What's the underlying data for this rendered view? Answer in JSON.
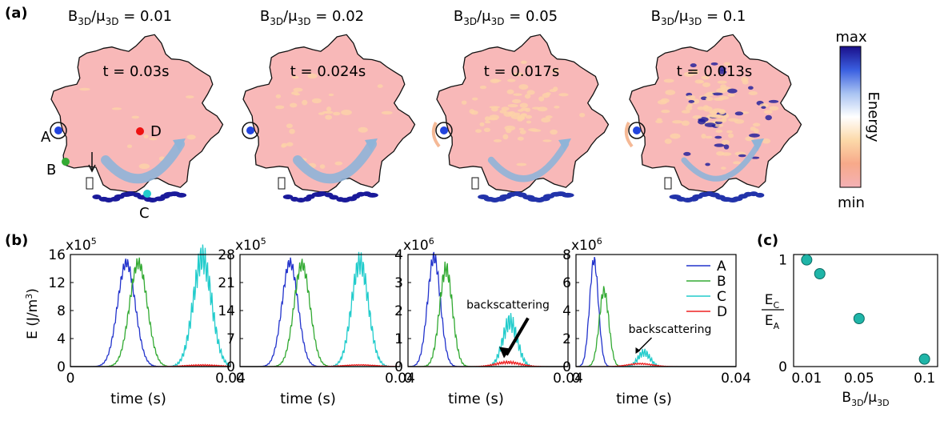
{
  "panel_a": {
    "label": "(a)",
    "panels": [
      {
        "title_ratio": "B",
        "title_value": "0.01",
        "time_label": "t = 0.03s",
        "backflow": false
      },
      {
        "title_ratio": "B",
        "title_value": "0.02",
        "time_label": "t = 0.024s",
        "backflow": false
      },
      {
        "title_ratio": "B",
        "title_value": "0.05",
        "time_label": "t = 0.017s",
        "backflow": true
      },
      {
        "title_ratio": "B",
        "title_value": "0.1",
        "time_label": "t = 0.013s",
        "backflow": true
      }
    ],
    "title_parts": {
      "b": "B",
      "b_sub": "3D",
      "slash": "/μ",
      "mu_sub": "3D",
      "eq": " = "
    },
    "points": {
      "A": "A",
      "B": "B",
      "C": "C",
      "D": "D"
    },
    "colors": {
      "A": "#2244dd",
      "B": "#33aa33",
      "C": "#22cccc",
      "D": "#ee1111",
      "flow": "#8fb4d8",
      "backflow": "#f5b996"
    },
    "colorbar": {
      "max_label": "max",
      "min_label": "min",
      "title": "Energy",
      "stops": [
        "#1a0f8a",
        "#3a5fe0",
        "#a9c3f2",
        "#ffffff",
        "#fcd9a8",
        "#f7a98a",
        "#f4b1b5"
      ]
    }
  },
  "panel_b": {
    "label": "(b)",
    "ylabel": "E (J/m",
    "ylabel_sup": "3",
    "ylabel_end": ")",
    "xlabel": "time (s)",
    "backscatter_label": "backscattering",
    "legend": [
      "A",
      "B",
      "C",
      "D"
    ],
    "series_colors": {
      "A": "#2233cc",
      "B": "#33aa33",
      "C": "#22cccc",
      "D": "#ee2222"
    }
  },
  "panel_c": {
    "label": "(c)",
    "ylabel_num": "E",
    "ylabel_num_sub": "C",
    "ylabel_den": "E",
    "ylabel_den_sub": "A",
    "xlabel": "B",
    "xlabel_sub1": "3D",
    "xlabel_mid": "/μ",
    "xlabel_sub2": "3D"
  },
  "chart_data": [
    {
      "type": "line",
      "id": "b1",
      "title": "B3D/μ3D = 0.01",
      "multiplier": "x10",
      "multiplier_exp": "5",
      "xlim": [
        0,
        0.04
      ],
      "ylim": [
        0,
        16
      ],
      "xticks": [
        0,
        0.04
      ],
      "xtick_labels": [
        "0",
        "0.04"
      ],
      "yticks": [
        0,
        4,
        8,
        12,
        16
      ],
      "ytick_labels": [
        "0",
        "4",
        "8",
        "12",
        "16"
      ],
      "series": [
        {
          "name": "A",
          "peak_x": 0.014,
          "peak_y": 14.8,
          "width": 0.0022,
          "osc": 0.8
        },
        {
          "name": "B",
          "peak_x": 0.017,
          "peak_y": 14.8,
          "width": 0.0022,
          "osc": 0.9
        },
        {
          "name": "C",
          "peak_x": 0.033,
          "peak_y": 15.5,
          "width": 0.0023,
          "osc": 2.2
        },
        {
          "name": "D",
          "peak_x": 0.033,
          "peak_y": 0.2,
          "width": 0.004,
          "osc": 0.1
        }
      ]
    },
    {
      "type": "line",
      "id": "b2",
      "title": "B3D/μ3D = 0.02",
      "multiplier": "x10",
      "multiplier_exp": "5",
      "xlim": [
        0,
        0.04
      ],
      "ylim": [
        0,
        28
      ],
      "xticks": [
        0,
        0.04
      ],
      "xtick_labels": [
        "0",
        "0.04"
      ],
      "yticks": [
        0,
        7,
        14,
        21,
        28
      ],
      "ytick_labels": [
        "0",
        "7",
        "14",
        "21",
        "28"
      ],
      "series": [
        {
          "name": "A",
          "peak_x": 0.0125,
          "peak_y": 26.0,
          "width": 0.002,
          "osc": 1.4
        },
        {
          "name": "B",
          "peak_x": 0.0155,
          "peak_y": 25.5,
          "width": 0.002,
          "osc": 1.6
        },
        {
          "name": "C",
          "peak_x": 0.03,
          "peak_y": 26.0,
          "width": 0.0021,
          "osc": 3.0
        },
        {
          "name": "D",
          "peak_x": 0.03,
          "peak_y": 0.4,
          "width": 0.004,
          "osc": 0.1
        }
      ]
    },
    {
      "type": "line",
      "id": "b3",
      "title": "B3D/μ3D = 0.05",
      "multiplier": "x10",
      "multiplier_exp": "6",
      "xlim": [
        0,
        0.04
      ],
      "ylim": [
        0,
        4
      ],
      "xticks": [
        0,
        0.04
      ],
      "xtick_labels": [
        "0",
        "0.04"
      ],
      "yticks": [
        0,
        1,
        2,
        3,
        4
      ],
      "ytick_labels": [
        "0",
        "1",
        "2",
        "3",
        "4"
      ],
      "series": [
        {
          "name": "A",
          "peak_x": 0.0065,
          "peak_y": 3.9,
          "width": 0.0016,
          "osc": 0.25
        },
        {
          "name": "B",
          "peak_x": 0.0095,
          "peak_y": 3.5,
          "width": 0.0016,
          "osc": 0.3
        },
        {
          "name": "C",
          "peak_x": 0.0255,
          "peak_y": 1.6,
          "width": 0.0018,
          "osc": 0.35
        },
        {
          "name": "D",
          "peak_x": 0.025,
          "peak_y": 0.15,
          "width": 0.003,
          "osc": 0.05
        }
      ],
      "annotation": {
        "text": "backscattering",
        "x": 0.024,
        "y": 0.3
      }
    },
    {
      "type": "line",
      "id": "b4",
      "title": "B3D/μ3D = 0.1",
      "multiplier": "x10",
      "multiplier_exp": "6",
      "xlim": [
        0,
        0.04
      ],
      "ylim": [
        0,
        8
      ],
      "xticks": [
        0,
        0.04
      ],
      "xtick_labels": [
        "0",
        "0.04"
      ],
      "yticks": [
        0,
        2,
        4,
        6,
        8
      ],
      "ytick_labels": [
        "0",
        "2",
        "4",
        "6",
        "8"
      ],
      "series": [
        {
          "name": "A",
          "peak_x": 0.0045,
          "peak_y": 7.6,
          "width": 0.0011,
          "osc": 0.4
        },
        {
          "name": "B",
          "peak_x": 0.007,
          "peak_y": 5.4,
          "width": 0.0012,
          "osc": 0.4
        },
        {
          "name": "C",
          "peak_x": 0.017,
          "peak_y": 1.0,
          "width": 0.0015,
          "osc": 0.3
        },
        {
          "name": "D",
          "peak_x": 0.016,
          "peak_y": 0.2,
          "width": 0.003,
          "osc": 0.05
        }
      ],
      "annotation": {
        "text": "backscattering",
        "x": 0.0145,
        "y": 0.8
      }
    },
    {
      "type": "scatter",
      "id": "c",
      "x_categories": [
        "0.01",
        "0.05",
        "0.1"
      ],
      "x_positions": [
        0.01,
        0.05,
        0.1
      ],
      "xlim": [
        0,
        0.11
      ],
      "ylim": [
        0,
        1.05
      ],
      "yticks": [
        0,
        1
      ],
      "ytick_labels": [
        "0",
        "1"
      ],
      "points": [
        {
          "x": 0.01,
          "y": 1.0
        },
        {
          "x": 0.02,
          "y": 0.87
        },
        {
          "x": 0.05,
          "y": 0.45
        },
        {
          "x": 0.1,
          "y": 0.07
        }
      ],
      "marker_color": "#1fb5a8"
    }
  ]
}
